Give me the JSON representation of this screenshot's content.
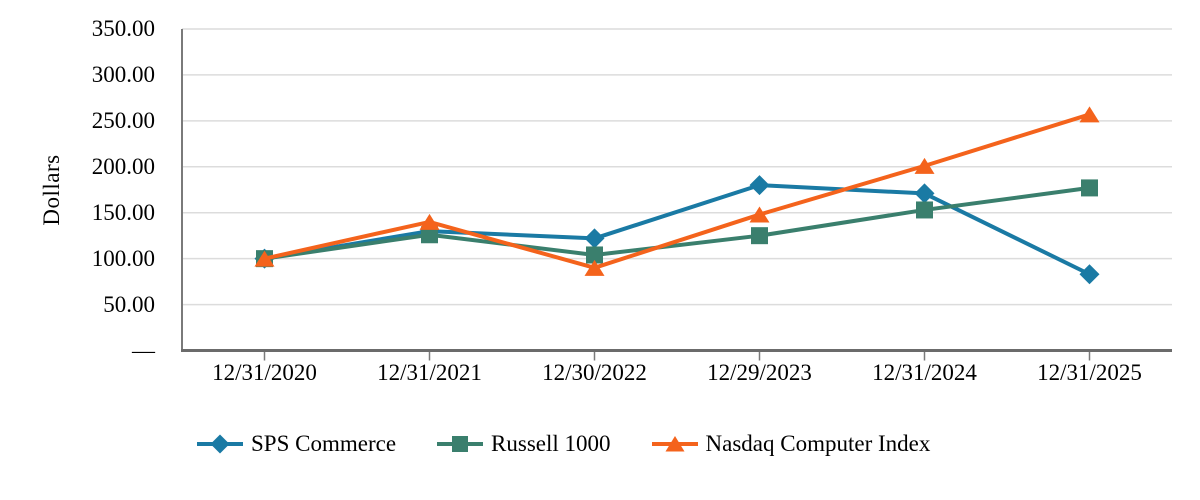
{
  "page": {
    "background": "#ffffff"
  },
  "colors": {
    "gridline": "#dcdcdc",
    "y_axis_line": "#7a7a7a",
    "x_axis_line": "#6b6b6b",
    "tick": "#7a7a7a",
    "text": "#000000"
  },
  "chart_data": {
    "type": "line",
    "title": "",
    "ylabel": "Dollars",
    "xlabel": "",
    "categories": [
      "12/31/2020",
      "12/31/2021",
      "12/30/2022",
      "12/29/2023",
      "12/31/2024",
      "12/31/2025"
    ],
    "series": [
      {
        "name": "SPS Commerce",
        "color": "#1a7aa4",
        "marker": "diamond",
        "values": [
          100.0,
          130.0,
          122.0,
          180.0,
          171.0,
          83.0
        ]
      },
      {
        "name": "Russell 1000",
        "color": "#3a7f6d",
        "marker": "square",
        "values": [
          100.0,
          126.0,
          104.0,
          125.0,
          153.0,
          177.0
        ]
      },
      {
        "name": "Nasdaq Computer Index",
        "color": "#f4631c",
        "marker": "triangle",
        "values": [
          100.0,
          140.0,
          90.0,
          148.0,
          201.0,
          257.0
        ]
      }
    ],
    "ylim": [
      0,
      350
    ],
    "ytick_step": 50,
    "ytick_labels": [
      "350.00",
      "300.00",
      "250.00",
      "200.00",
      "150.00",
      "100.00",
      "50.00",
      "—"
    ],
    "grid": "horizontal-only",
    "legend_position": "bottom"
  }
}
